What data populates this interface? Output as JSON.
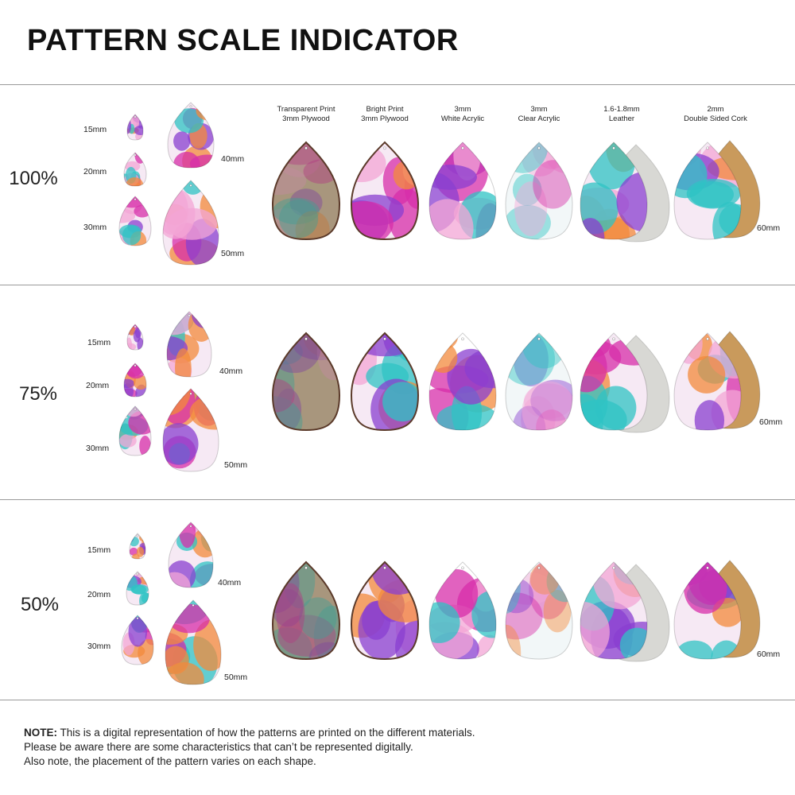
{
  "title": "PATTERN SCALE INDICATOR",
  "materials": [
    {
      "line1": "Transparent Print",
      "line2": "3mm Plywood",
      "kind": "plywood-transparent"
    },
    {
      "line1": "Bright Print",
      "line2": "3mm Plywood",
      "kind": "plywood-bright"
    },
    {
      "line1": "3mm",
      "line2": "White Acrylic",
      "kind": "white-acrylic"
    },
    {
      "line1": "3mm",
      "line2": "Clear Acrylic",
      "kind": "clear-acrylic"
    },
    {
      "line1": "1.6-1.8mm",
      "line2": "Leather",
      "kind": "leather"
    },
    {
      "line1": "2mm",
      "line2": "Double Sided Cork",
      "kind": "cork"
    }
  ],
  "size_labels": [
    "15mm",
    "20mm",
    "30mm",
    "40mm",
    "50mm"
  ],
  "material_size_label": "60mm",
  "scales": [
    {
      "label": "100%"
    },
    {
      "label": "75%"
    },
    {
      "label": "50%"
    }
  ],
  "note": {
    "bold": "NOTE:",
    "line1": " This is a digital representation of how the patterns are printed on the different materials.",
    "line2": "Please be aware there are some characteristics that can’t be represented digitally.",
    "line3": "Also note, the placement of the pattern varies on each shape."
  },
  "colors": {
    "magenta": "#d72ea9",
    "purple": "#8a3fd0",
    "teal": "#2fc3c4",
    "orange": "#f38a3c",
    "pink": "#f3a6d6",
    "leather_back": "#d8d8d4",
    "cork_back": "#c99a5c",
    "plywood_edge": "#5b3a2a"
  }
}
